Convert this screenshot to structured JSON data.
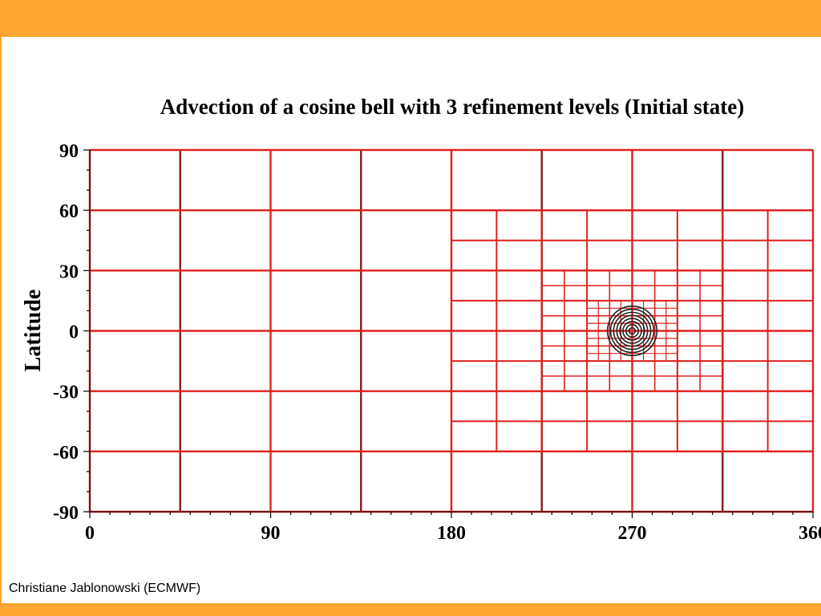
{
  "slide": {
    "accent_color": "#ffa733",
    "credit": "Christiane Jablonowski (ECMWF)"
  },
  "chart_data": {
    "type": "grid",
    "title": "Advection of a cosine bell with 3 refinement levels (Initial state)",
    "xlabel": "",
    "ylabel": "Latitude",
    "xlim": [
      0,
      360
    ],
    "ylim": [
      -90,
      90
    ],
    "xticks": [
      "0",
      "90",
      "180",
      "270",
      "360"
    ],
    "yticks": [
      "90",
      "60",
      "30",
      "0",
      "-30",
      "-60",
      "-90"
    ],
    "colors": {
      "grid": "#e0201e",
      "cell_edge": "#8b1a1a",
      "bell": "#222222"
    },
    "base_grid": {
      "dlon": 45,
      "dlat": 30
    },
    "refinement_levels": [
      {
        "level": 1,
        "lon": [
          180,
          360
        ],
        "lat": [
          -60,
          60
        ],
        "dlon": 22.5,
        "dlat": 15
      },
      {
        "level": 2,
        "lon": [
          225,
          315
        ],
        "lat": [
          -30,
          30
        ],
        "dlon": 11.25,
        "dlat": 7.5
      },
      {
        "level": 3,
        "lon": [
          247.5,
          292.5
        ],
        "lat": [
          -15,
          15
        ],
        "dlon": 5.625,
        "dlat": 3.75
      }
    ],
    "cosine_bell": {
      "center_lon": 270,
      "center_lat": 0,
      "radius_deg": 15
    }
  }
}
